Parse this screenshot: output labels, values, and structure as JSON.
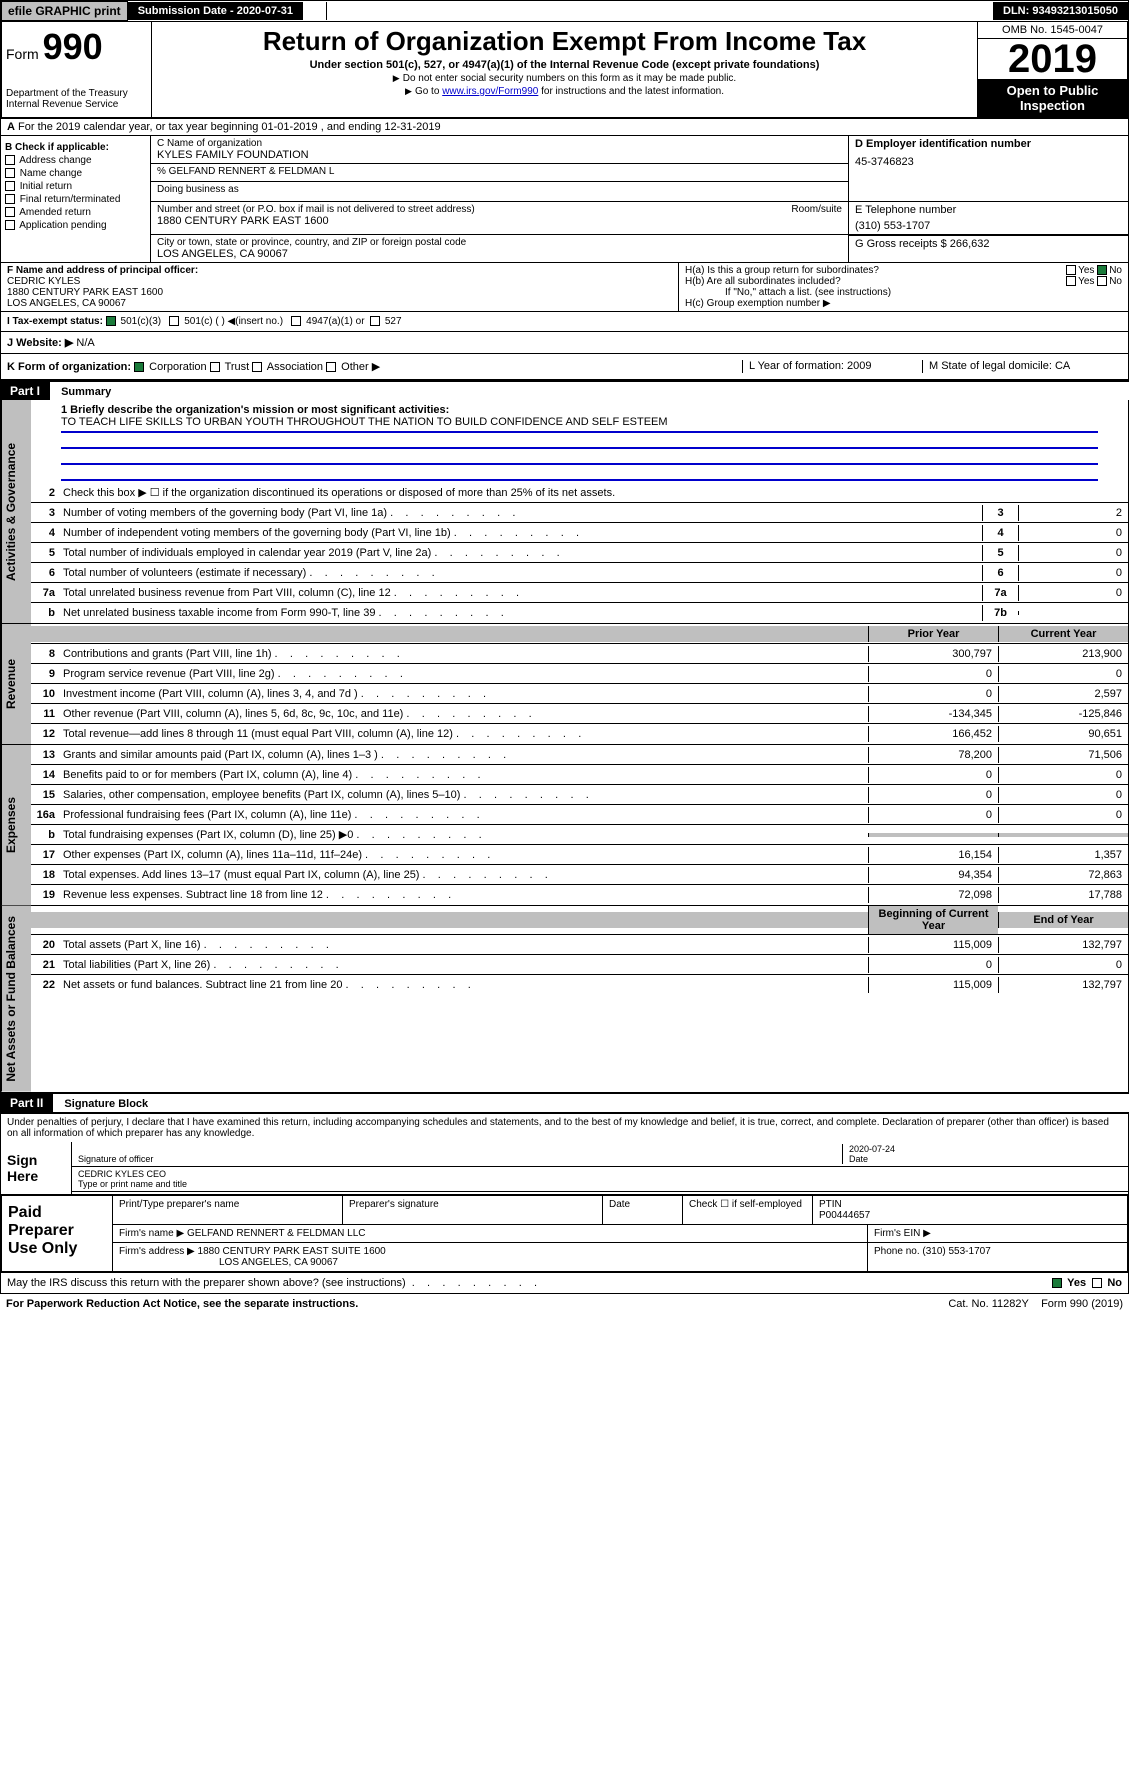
{
  "topbar": {
    "efile": "efile GRAPHIC print",
    "sd_label": "Submission Date - 2020-07-31",
    "dln": "DLN: 93493213015050"
  },
  "header": {
    "form_label": "Form",
    "form_no": "990",
    "dept": "Department of the Treasury Internal Revenue Service",
    "title": "Return of Organization Exempt From Income Tax",
    "sub": "Under section 501(c), 527, or 4947(a)(1) of the Internal Revenue Code (except private foundations)",
    "note1": "Do not enter social security numbers on this form as it may be made public.",
    "note2_pre": "Go to ",
    "note2_link": "www.irs.gov/Form990",
    "note2_post": " for instructions and the latest information.",
    "omb": "OMB No. 1545-0047",
    "year": "2019",
    "open": "Open to Public Inspection"
  },
  "lineA": "For the 2019 calendar year, or tax year beginning 01-01-2019    , and ending 12-31-2019",
  "colB": {
    "hdr": "B Check if applicable:",
    "opts": [
      "Address change",
      "Name change",
      "Initial return",
      "Final return/terminated",
      "Amended return",
      "Application pending"
    ]
  },
  "colC": {
    "name_label": "C Name of organization",
    "name": "KYLES FAMILY FOUNDATION",
    "co": "% GELFAND RENNERT & FELDMAN L",
    "dba_label": "Doing business as",
    "addr_label": "Number and street (or P.O. box if mail is not delivered to street address)",
    "addr": "1880 CENTURY PARK EAST 1600",
    "room_label": "Room/suite",
    "city_label": "City or town, state or province, country, and ZIP or foreign postal code",
    "city": "LOS ANGELES, CA  90067"
  },
  "colD": {
    "label": "D Employer identification number",
    "val": "45-3746823"
  },
  "colE": {
    "label": "E Telephone number",
    "val": "(310) 553-1707"
  },
  "colG": {
    "label": "G Gross receipts $ 266,632"
  },
  "colF": {
    "label": "F  Name and address of principal officer:",
    "name": "CEDRIC KYLES",
    "addr": "1880 CENTURY PARK EAST 1600",
    "city": "LOS ANGELES, CA  90067"
  },
  "colH": {
    "a": "H(a)  Is this a group return for subordinates?",
    "b": "H(b)  Are all subordinates included?",
    "b_note": "If \"No,\" attach a list. (see instructions)",
    "c": "H(c)  Group exemption number ▶",
    "yes": "Yes",
    "no": "No"
  },
  "rowI": {
    "label": "I   Tax-exempt status:",
    "o501c3": "501(c)(3)",
    "o501c": "501(c) (  ) ◀(insert no.)",
    "o4947": "4947(a)(1) or",
    "o527": "527"
  },
  "rowJ": {
    "label": "J   Website: ▶",
    "val": "N/A"
  },
  "rowK": {
    "label": "K Form of organization:",
    "corp": "Corporation",
    "trust": "Trust",
    "assoc": "Association",
    "other": "Other ▶",
    "l_label": "L Year of formation: 2009",
    "m_label": "M State of legal domicile: CA"
  },
  "part1": {
    "hdr": "Part I",
    "title": "Summary"
  },
  "summary": {
    "l1": "1  Briefly describe the organization's mission or most significant activities:",
    "mission": "TO TEACH LIFE SKILLS TO URBAN YOUTH THROUGHOUT THE NATION TO BUILD CONFIDENCE AND SELF ESTEEM",
    "l2": "Check this box ▶ ☐  if the organization discontinued its operations or disposed of more than 25% of its net assets.",
    "rows_a": [
      {
        "n": "3",
        "d": "Number of voting members of the governing body (Part VI, line 1a)",
        "b": "3",
        "v": "2"
      },
      {
        "n": "4",
        "d": "Number of independent voting members of the governing body (Part VI, line 1b)",
        "b": "4",
        "v": "0"
      },
      {
        "n": "5",
        "d": "Total number of individuals employed in calendar year 2019 (Part V, line 2a)",
        "b": "5",
        "v": "0"
      },
      {
        "n": "6",
        "d": "Total number of volunteers (estimate if necessary)",
        "b": "6",
        "v": "0"
      },
      {
        "n": "7a",
        "d": "Total unrelated business revenue from Part VIII, column (C), line 12",
        "b": "7a",
        "v": "0"
      },
      {
        "n": "b",
        "d": "Net unrelated business taxable income from Form 990-T, line 39",
        "b": "7b",
        "v": ""
      }
    ],
    "hdr_prior": "Prior Year",
    "hdr_curr": "Current Year",
    "rows_rev": [
      {
        "n": "8",
        "d": "Contributions and grants (Part VIII, line 1h)",
        "p": "300,797",
        "c": "213,900"
      },
      {
        "n": "9",
        "d": "Program service revenue (Part VIII, line 2g)",
        "p": "0",
        "c": "0"
      },
      {
        "n": "10",
        "d": "Investment income (Part VIII, column (A), lines 3, 4, and 7d )",
        "p": "0",
        "c": "2,597"
      },
      {
        "n": "11",
        "d": "Other revenue (Part VIII, column (A), lines 5, 6d, 8c, 9c, 10c, and 11e)",
        "p": "-134,345",
        "c": "-125,846"
      },
      {
        "n": "12",
        "d": "Total revenue—add lines 8 through 11 (must equal Part VIII, column (A), line 12)",
        "p": "166,452",
        "c": "90,651"
      }
    ],
    "rows_exp": [
      {
        "n": "13",
        "d": "Grants and similar amounts paid (Part IX, column (A), lines 1–3 )",
        "p": "78,200",
        "c": "71,506"
      },
      {
        "n": "14",
        "d": "Benefits paid to or for members (Part IX, column (A), line 4)",
        "p": "0",
        "c": "0"
      },
      {
        "n": "15",
        "d": "Salaries, other compensation, employee benefits (Part IX, column (A), lines 5–10)",
        "p": "0",
        "c": "0"
      },
      {
        "n": "16a",
        "d": "Professional fundraising fees (Part IX, column (A), line 11e)",
        "p": "0",
        "c": "0"
      },
      {
        "n": "b",
        "d": "Total fundraising expenses (Part IX, column (D), line 25) ▶0",
        "p": "",
        "c": "",
        "shaded": true
      },
      {
        "n": "17",
        "d": "Other expenses (Part IX, column (A), lines 11a–11d, 11f–24e)",
        "p": "16,154",
        "c": "1,357"
      },
      {
        "n": "18",
        "d": "Total expenses. Add lines 13–17 (must equal Part IX, column (A), line 25)",
        "p": "94,354",
        "c": "72,863"
      },
      {
        "n": "19",
        "d": "Revenue less expenses. Subtract line 18 from line 12",
        "p": "72,098",
        "c": "17,788"
      }
    ],
    "hdr_beg": "Beginning of Current Year",
    "hdr_end": "End of Year",
    "rows_bal": [
      {
        "n": "20",
        "d": "Total assets (Part X, line 16)",
        "p": "115,009",
        "c": "132,797"
      },
      {
        "n": "21",
        "d": "Total liabilities (Part X, line 26)",
        "p": "0",
        "c": "0"
      },
      {
        "n": "22",
        "d": "Net assets or fund balances. Subtract line 21 from line 20",
        "p": "115,009",
        "c": "132,797"
      }
    ],
    "side_gov": "Activities & Governance",
    "side_rev": "Revenue",
    "side_exp": "Expenses",
    "side_bal": "Net Assets or Fund Balances"
  },
  "part2": {
    "hdr": "Part II",
    "title": "Signature Block"
  },
  "sig": {
    "perjury": "Under penalties of perjury, I declare that I have examined this return, including accompanying schedules and statements, and to the best of my knowledge and belief, it is true, correct, and complete. Declaration of preparer (other than officer) is based on all information of which preparer has any knowledge.",
    "sign_here": "Sign Here",
    "sig_officer": "Signature of officer",
    "date": "2020-07-24",
    "date_label": "Date",
    "name": "CEDRIC KYLES CEO",
    "name_label": "Type or print name and title"
  },
  "paid": {
    "hdr": "Paid Preparer Use Only",
    "h_name": "Print/Type preparer's name",
    "h_sig": "Preparer's signature",
    "h_date": "Date",
    "h_check": "Check ☐ if self-employed",
    "h_ptin": "PTIN",
    "ptin": "P00444657",
    "firm_name_l": "Firm's name   ▶",
    "firm_name": "GELFAND RENNERT & FELDMAN LLC",
    "firm_ein_l": "Firm's EIN ▶",
    "firm_addr_l": "Firm's address ▶",
    "firm_addr": "1880 CENTURY PARK EAST SUITE 1600",
    "firm_city": "LOS ANGELES, CA  90067",
    "phone_l": "Phone no. (310) 553-1707"
  },
  "may_irs": "May the IRS discuss this return with the preparer shown above? (see instructions)",
  "footer": {
    "pra": "For Paperwork Reduction Act Notice, see the separate instructions.",
    "cat": "Cat. No. 11282Y",
    "form": "Form 990 (2019)"
  }
}
